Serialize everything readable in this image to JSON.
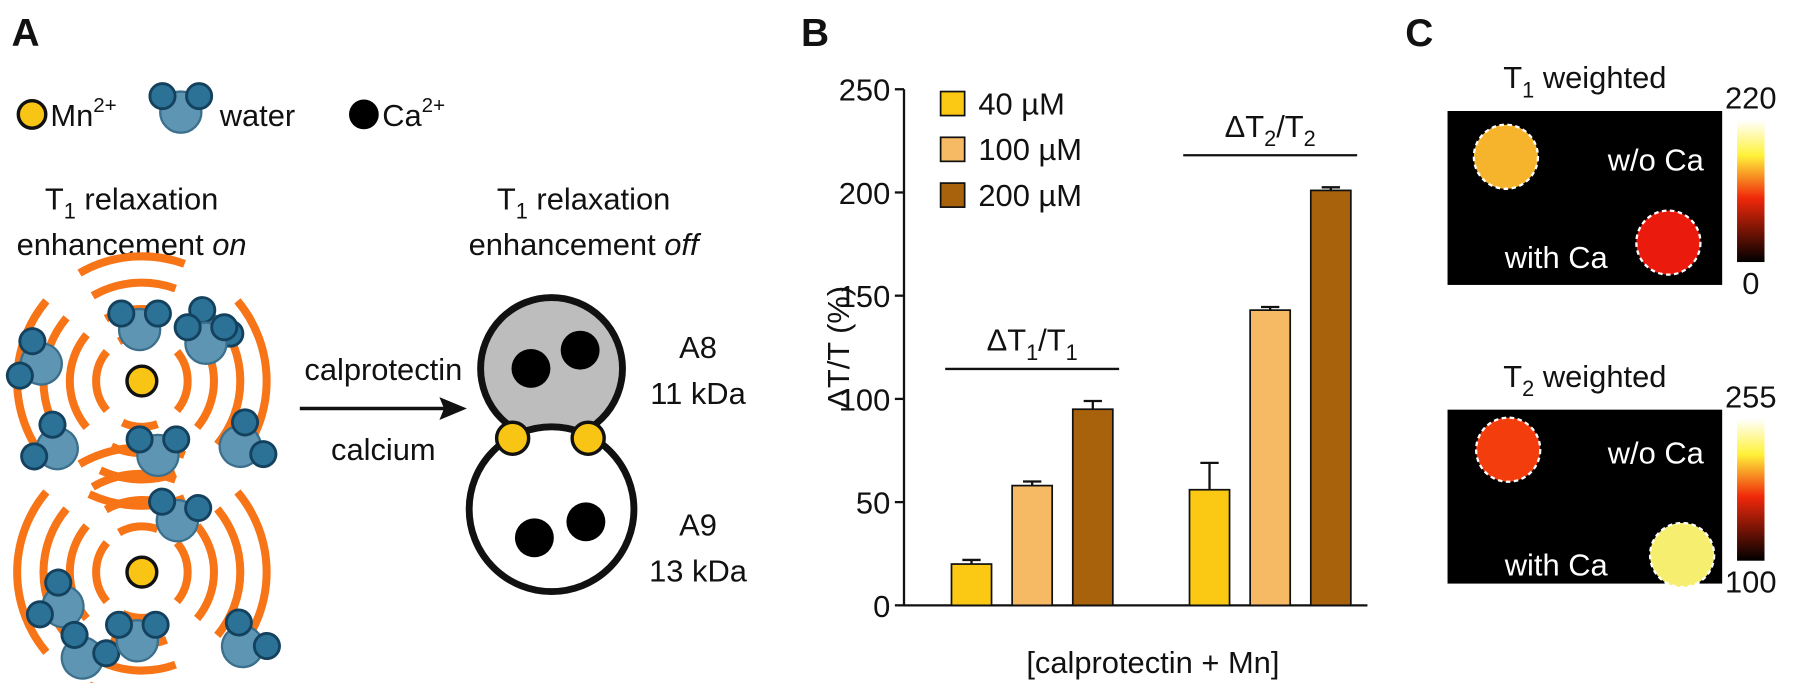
{
  "panel_a": {
    "label": "A",
    "legend": {
      "mn": {
        "base": "Mn",
        "sup": "2+"
      },
      "water": "water",
      "ca": {
        "base": "Ca",
        "sup": "2+"
      }
    },
    "state_on": {
      "line1": {
        "base": "T",
        "sub": "1",
        "rest": " relaxation"
      },
      "line2": {
        "text": "enhancement ",
        "em": "on"
      }
    },
    "state_off": {
      "line1": {
        "base": "T",
        "sub": "1",
        "rest": " relaxation"
      },
      "line2": {
        "text": "enhancement ",
        "em": "off"
      }
    },
    "arrow_top": "calprotectin",
    "arrow_bottom": "calcium",
    "subunits": [
      {
        "name": "A8",
        "mass": "11 kDa"
      },
      {
        "name": "A9",
        "mass": "13 kDa"
      }
    ]
  },
  "chart_data": {
    "type": "bar",
    "panel_label": "B",
    "ylabel": "ΔT/T (%)",
    "xlabel": "[calprotectin + Mn]",
    "categories": [
      null,
      null
    ],
    "annotations": [
      {
        "base": "ΔT",
        "sub": "1",
        "mid": "/T",
        "sub2": "1"
      },
      {
        "base": "ΔT",
        "sub": "2",
        "mid": "/T",
        "sub2": "2"
      }
    ],
    "series": [
      {
        "name": "40 µM",
        "color": "#fbc913",
        "values": [
          20,
          56
        ],
        "errors": [
          2,
          13
        ]
      },
      {
        "name": "100 µM",
        "color": "#f7ba64",
        "values": [
          58,
          143
        ],
        "errors": [
          2,
          1.5
        ]
      },
      {
        "name": "200 µM",
        "color": "#a8620c",
        "values": [
          95,
          201
        ],
        "errors": [
          4,
          1.5
        ]
      }
    ],
    "ylim": [
      0,
      250
    ],
    "yticks": [
      0,
      50,
      100,
      150,
      200,
      250
    ],
    "grid": false,
    "legend": "upper left"
  },
  "panel_c": {
    "label": "C",
    "images": [
      {
        "title": {
          "base": "T",
          "sub": "1",
          "rest": " weighted"
        },
        "top_label": "w/o Ca",
        "bottom_label": "with Ca",
        "scale_max": "220",
        "scale_min": "0"
      },
      {
        "title": {
          "base": "T",
          "sub": "2",
          "rest": " weighted"
        },
        "top_label": "w/o Ca",
        "bottom_label": "with Ca",
        "scale_max": "255",
        "scale_min": "100"
      }
    ]
  }
}
